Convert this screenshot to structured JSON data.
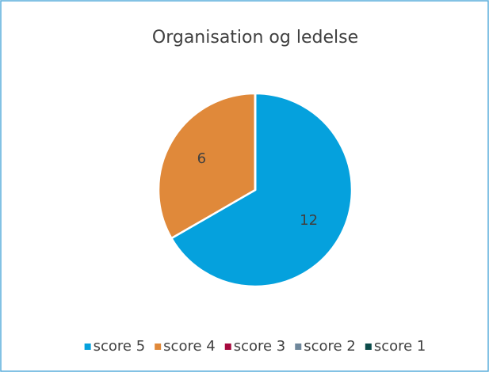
{
  "chart_data": {
    "type": "pie",
    "title": "Organisation og ledelse",
    "categories": [
      "score 5",
      "score 4",
      "score 3",
      "score 2",
      "score 1"
    ],
    "values": [
      12,
      6,
      0,
      0,
      0
    ],
    "colors": [
      "#05a1dd",
      "#e0893a",
      "#a6093d",
      "#6f879b",
      "#0c4b4a"
    ],
    "legend": "bottom"
  }
}
